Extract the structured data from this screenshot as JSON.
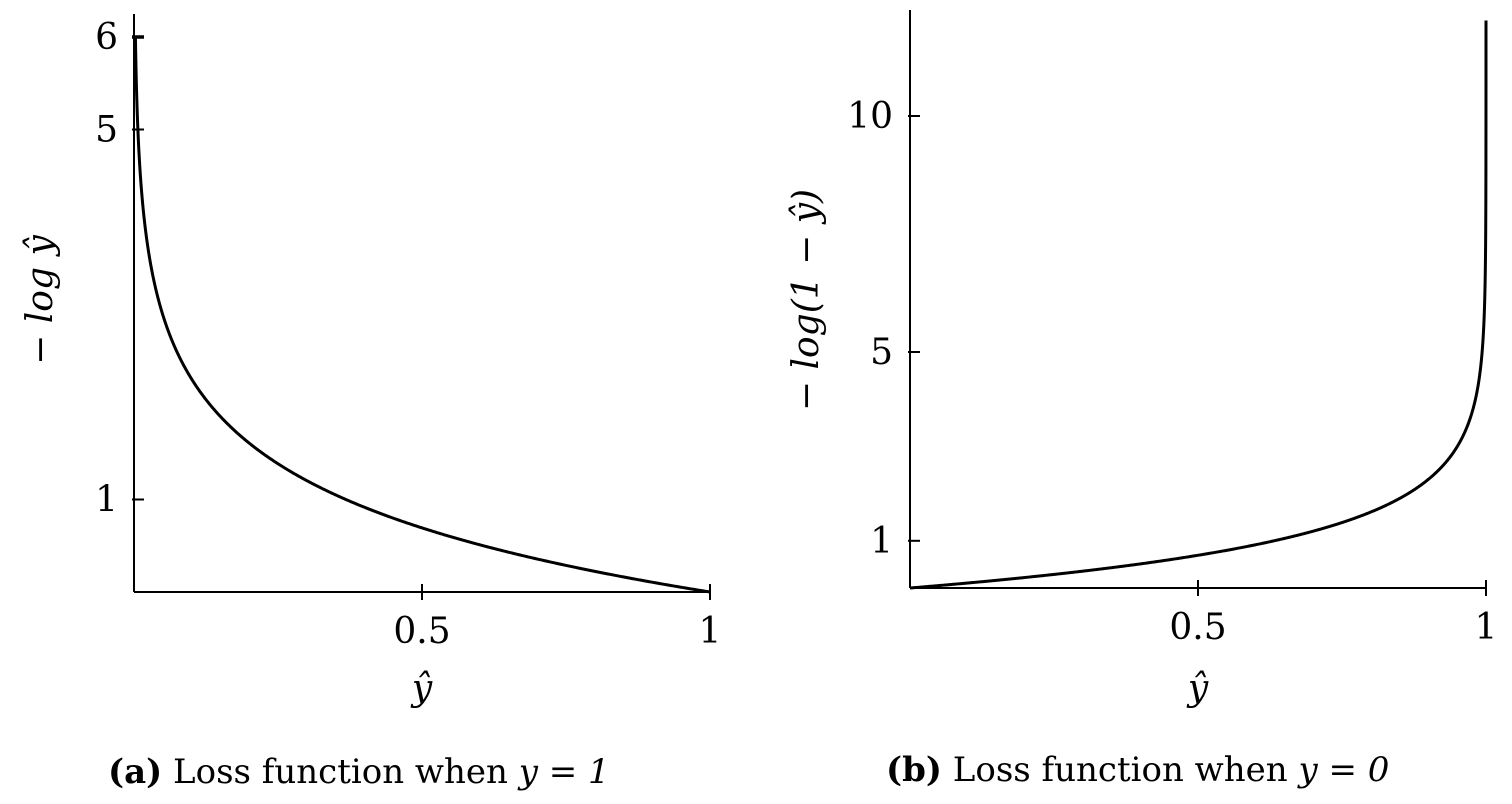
{
  "chart_data": [
    {
      "type": "line",
      "caption_tag": "(a)",
      "caption_text": "Loss function when",
      "caption_math": "y = 1",
      "xlabel": "ŷ",
      "ylabel": "− log ŷ",
      "xlim": [
        0,
        1
      ],
      "ylim": [
        0,
        6
      ],
      "xticks": [
        {
          "value": 0.5,
          "label": "0.5"
        },
        {
          "value": 1,
          "label": "1"
        }
      ],
      "yticks": [
        {
          "value": 1,
          "label": "1"
        },
        {
          "value": 5,
          "label": "5"
        },
        {
          "value": 6,
          "label": "6"
        }
      ],
      "series": [
        {
          "function": "-log(x)",
          "x_start": 0.0025,
          "x_end": 1,
          "color": "#000000"
        }
      ],
      "grid": false
    },
    {
      "type": "line",
      "caption_tag": "(b)",
      "caption_text": "Loss function when",
      "caption_math": "y = 0",
      "xlabel": "ŷ",
      "ylabel": "− log(1 − ŷ)",
      "xlim": [
        0,
        1
      ],
      "ylim": [
        0,
        12
      ],
      "xticks": [
        {
          "value": 0.5,
          "label": "0.5"
        },
        {
          "value": 1,
          "label": "1"
        }
      ],
      "yticks": [
        {
          "value": 1,
          "label": "1"
        },
        {
          "value": 5,
          "label": "5"
        },
        {
          "value": 10,
          "label": "10"
        }
      ],
      "series": [
        {
          "function": "-log(1-x)",
          "x_start": 0,
          "x_end": 0.999994,
          "color": "#000000"
        }
      ],
      "grid": false
    }
  ]
}
